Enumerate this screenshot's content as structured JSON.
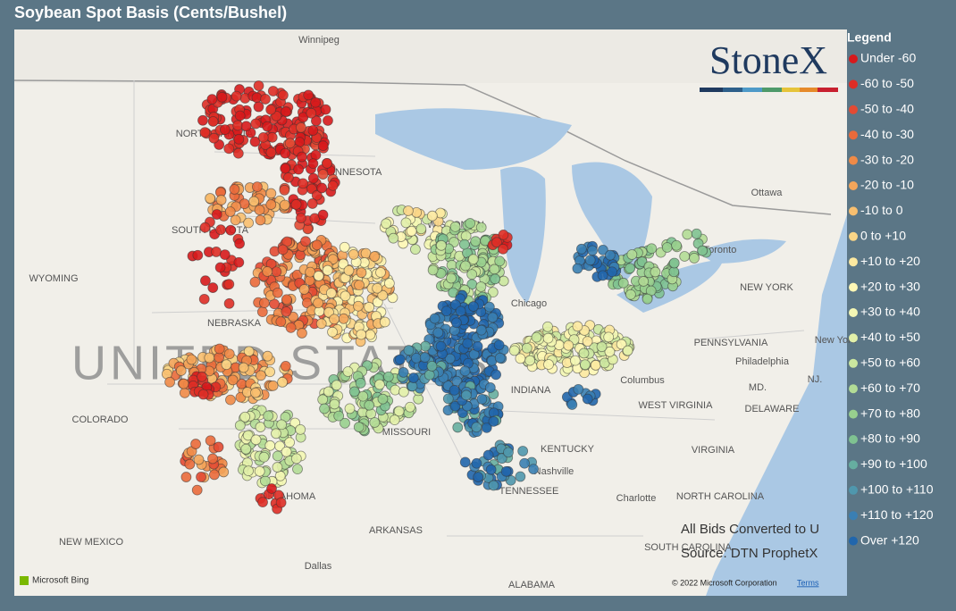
{
  "title": "Soybean Spot Basis (Cents/Bushel)",
  "logo": "StoneX",
  "legend": {
    "title": "Legend",
    "items": [
      {
        "label": "Under -60",
        "color": "#d7191c"
      },
      {
        "label": "-60 to -50",
        "color": "#de2d26"
      },
      {
        "label": "-50 to -40",
        "color": "#e34a33"
      },
      {
        "label": "-40 to -30",
        "color": "#ea6a3b"
      },
      {
        "label": "-30 to -20",
        "color": "#ef8a47"
      },
      {
        "label": "-20 to -10",
        "color": "#f4a55a"
      },
      {
        "label": "-10 to 0",
        "color": "#f8bf6f"
      },
      {
        "label": "0 to +10",
        "color": "#fbd687"
      },
      {
        "label": "+10 to +20",
        "color": "#fde9a0"
      },
      {
        "label": "+20 to +30",
        "color": "#fef7b5"
      },
      {
        "label": "+30 to +40",
        "color": "#f4f7b4"
      },
      {
        "label": "+40 to +50",
        "color": "#e2f0a9"
      },
      {
        "label": "+50 to +60",
        "color": "#cbe79f"
      },
      {
        "label": "+60 to +70",
        "color": "#b2dc96"
      },
      {
        "label": "+70 to +80",
        "color": "#98cf8e"
      },
      {
        "label": "+80 to +90",
        "color": "#7fc291"
      },
      {
        "label": "+90 to +100",
        "color": "#66aea0"
      },
      {
        "label": "+100 to +110",
        "color": "#4f97ad"
      },
      {
        "label": "+110 to +120",
        "color": "#3a7fb3"
      },
      {
        "label": "Over +120",
        "color": "#2166ac"
      }
    ]
  },
  "map_labels": [
    "Winnipeg",
    "NORTH DAKOTA",
    "MINNESOTA",
    "SOUTH DAKOTA",
    "WYOMING",
    "NEBRASKA",
    "COLORADO",
    "NEW MEXICO",
    "OKLAHOMA",
    "Dallas",
    "ARKANSAS",
    "MISSOURI",
    "WISCONSIN",
    "Chicago",
    "INDIANA",
    "Columbus",
    "KENTUCKY",
    "Nashville",
    "TENNESSEE",
    "ALABAMA",
    "Charlotte",
    "NORTH CAROLINA",
    "SOUTH CAROLINA",
    "VIRGINIA",
    "WEST VIRGINIA",
    "PENNSYLVANIA",
    "NEW YORK",
    "Ottawa",
    "Toronto",
    "Philadelphia",
    "MD.",
    "DELAWARE",
    "NJ.",
    "New York"
  ],
  "watermark": "UNITED STATES",
  "notes": [
    "All Bids Converted to U",
    "Source: DTN ProphetX"
  ],
  "attribution": {
    "bing": "Microsoft Bing",
    "copyright": "© 2022 Microsoft Corporation",
    "terms": "Terms"
  }
}
